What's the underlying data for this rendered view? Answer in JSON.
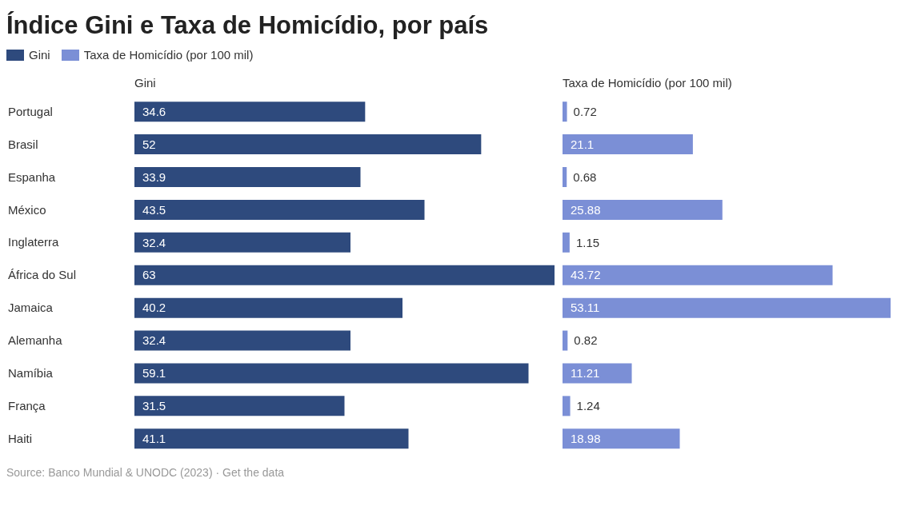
{
  "chart_data": [
    {
      "type": "bar",
      "orientation": "horizontal",
      "title": "Índice Gini e Taxa de Homicídio, por país",
      "xlabel": "Gini",
      "legend": "top left",
      "data_labels": true,
      "categories": [
        "Portugal",
        "Brasil",
        "Espanha",
        "México",
        "Inglaterra",
        "África do Sul",
        "Jamaica",
        "Alemanha",
        "Namíbia",
        "França",
        "Haiti"
      ],
      "series": [
        {
          "name": "Gini",
          "color": "#2e4a7d",
          "values": [
            34.6,
            52,
            33.9,
            43.5,
            32.4,
            63,
            40.2,
            32.4,
            59.1,
            31.5,
            41.1
          ]
        }
      ],
      "annotations": [
        "Source: Banco Mundial & UNODC (2023) · Get the data"
      ]
    },
    {
      "type": "bar",
      "orientation": "horizontal",
      "xlabel": "Taxa de Homicídio (por 100 mil)",
      "legend": "top left",
      "data_labels": true,
      "tick_labels": false,
      "categories": [
        null,
        null,
        null,
        null,
        null,
        null,
        null,
        null,
        null,
        null,
        null
      ],
      "series": [
        {
          "name": "Taxa de Homicídio (por 100 mil)",
          "color": "#7b8fd6",
          "values": [
            0.72,
            21.1,
            0.68,
            25.88,
            1.15,
            43.72,
            53.11,
            0.82,
            11.21,
            1.24,
            18.98
          ]
        }
      ]
    }
  ]
}
